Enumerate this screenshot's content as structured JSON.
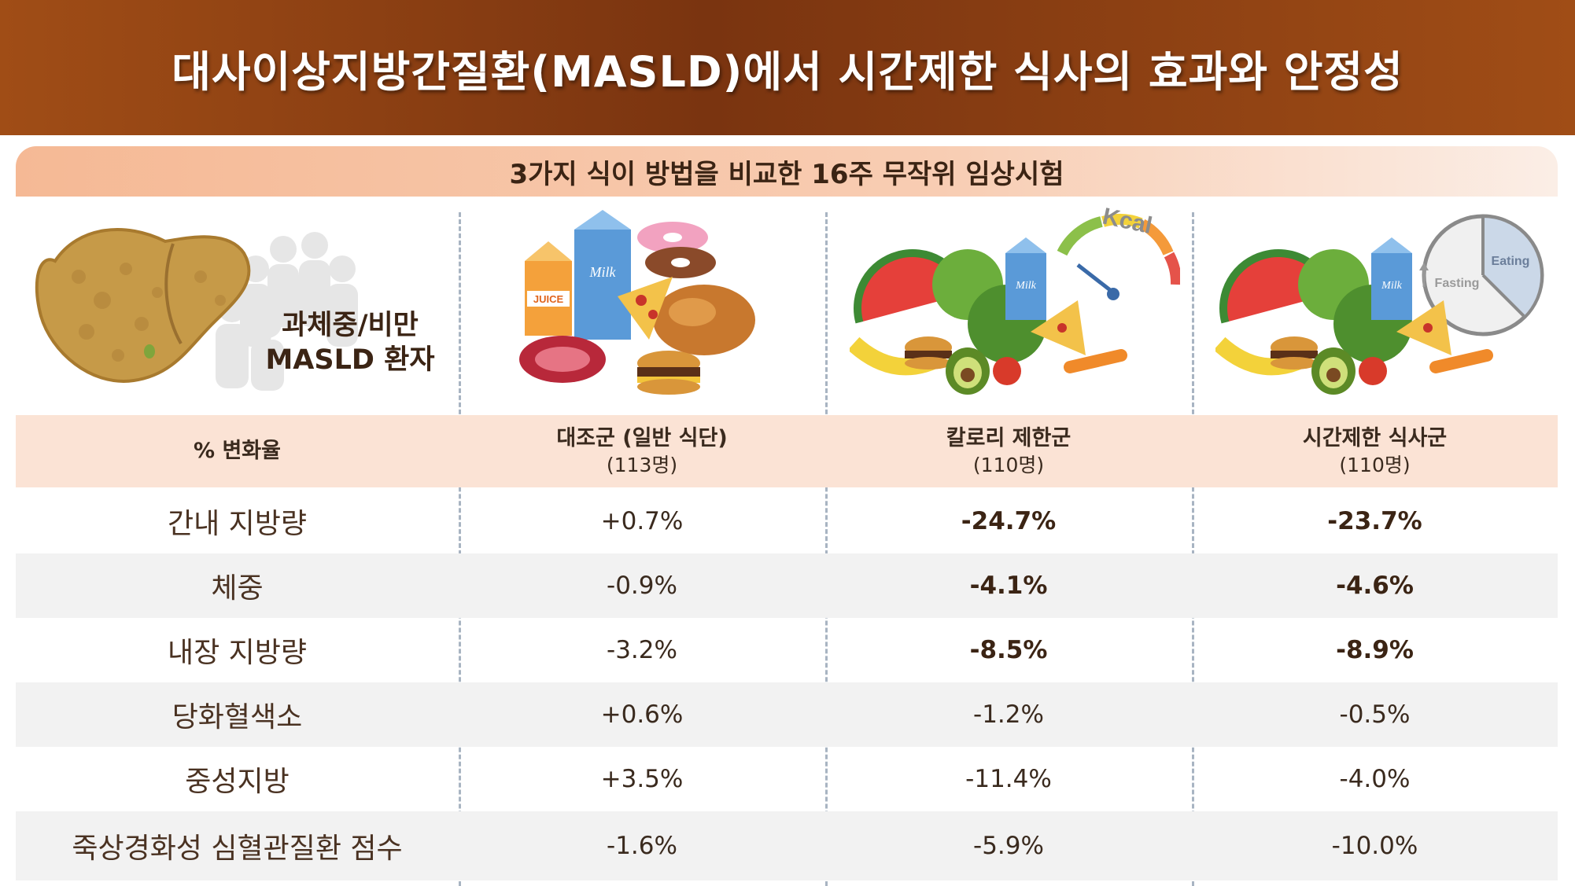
{
  "title": "대사이상지방간질환(MASLD)에서 시간제한 식사의 효과와 안정성",
  "subtitle": "3가지 식이 방법을 비교한 16주 무작위 임상시험",
  "patient_label_line1": "과체중/비만",
  "patient_label_line2": "MASLD 환자",
  "illustrations": {
    "milk_label": "Milk",
    "juice_label": "JUICE",
    "kcal_label": "Kcal",
    "eating_label": "Eating",
    "fasting_label": "Fasting"
  },
  "table": {
    "header_label": "% 변화율",
    "groups": [
      {
        "name": "대조군 (일반 식단)",
        "n": "(113명)"
      },
      {
        "name": "칼로리 제한군",
        "n": "(110명)"
      },
      {
        "name": "시간제한 식사군",
        "n": "(110명)"
      }
    ],
    "rows": [
      {
        "label": "간내 지방량",
        "values": [
          "+0.7%",
          "-24.7%",
          "-23.7%"
        ],
        "bold": [
          false,
          true,
          true
        ]
      },
      {
        "label": "체중",
        "values": [
          "-0.9%",
          "-4.1%",
          "-4.6%"
        ],
        "bold": [
          false,
          true,
          true
        ]
      },
      {
        "label": "내장 지방량",
        "values": [
          "-3.2%",
          "-8.5%",
          "-8.9%"
        ],
        "bold": [
          false,
          true,
          true
        ]
      },
      {
        "label": "당화혈색소",
        "values": [
          "+0.6%",
          "-1.2%",
          "-0.5%"
        ],
        "bold": [
          false,
          false,
          false
        ]
      },
      {
        "label": "중성지방",
        "values": [
          "+3.5%",
          "-11.4%",
          "-4.0%"
        ],
        "bold": [
          false,
          false,
          false
        ]
      },
      {
        "label": "죽상경화성 심혈관질환 점수",
        "values": [
          "-1.6%",
          "-5.9%",
          "-10.0%"
        ],
        "bold": [
          false,
          false,
          false
        ]
      }
    ]
  },
  "colors": {
    "title_bg": "#7a3410",
    "subtitle_bg": "#f5b995",
    "header_bg": "#fbe3d5",
    "row_shade": "#f2f2f2",
    "divider": "#a8b4c2"
  }
}
